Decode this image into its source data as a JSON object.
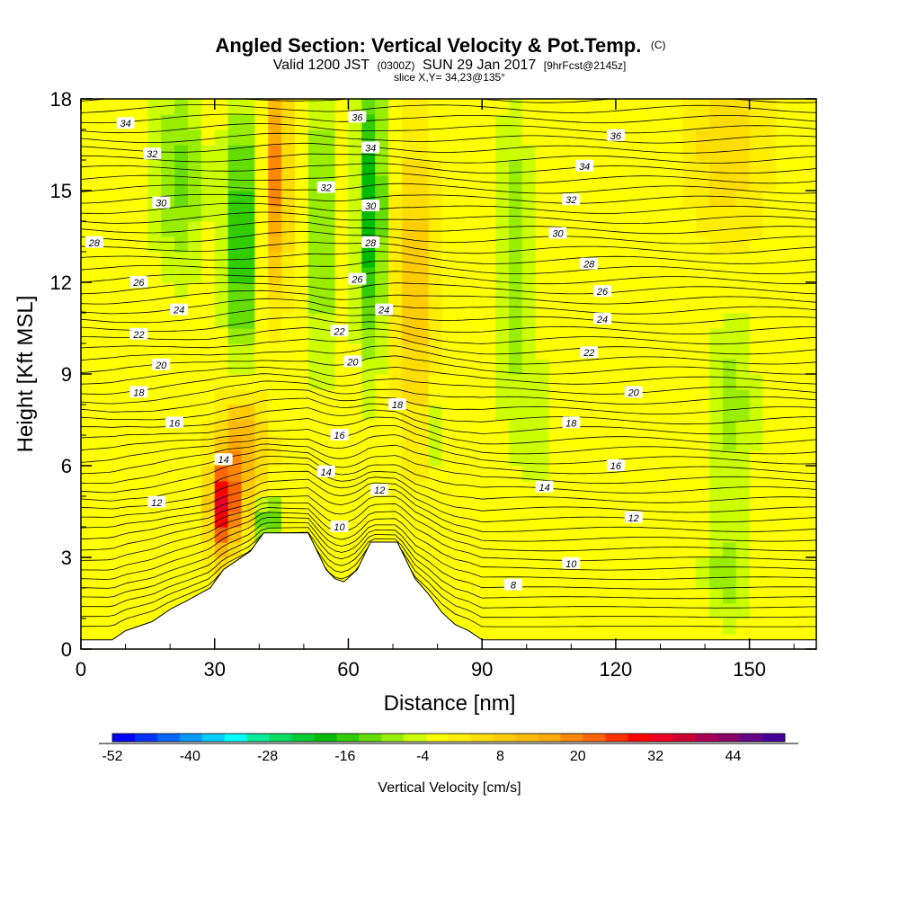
{
  "chart_data": {
    "type": "heatmap",
    "title": "Angled Section: Vertical Velocity & Pot.Temp.",
    "title_mark": "(C)",
    "subtitle": {
      "valid": "Valid 1200 JST",
      "utc": "(0300Z)",
      "date": "SUN 29 Jan 2017",
      "fcst": "[9hrFcst@2145z]"
    },
    "slice_label": "slice X,Y= 34,23@135°",
    "xlabel": "Distance [nm]",
    "ylabel": "Height [Kft MSL]",
    "xlim": [
      0,
      165
    ],
    "ylim": [
      0,
      18
    ],
    "x_ticks": [
      0,
      30,
      60,
      90,
      120,
      150
    ],
    "y_ticks": [
      0,
      3,
      6,
      9,
      12,
      15,
      18
    ],
    "colorbar": {
      "label": "Vertical Velocity [cm/s]",
      "range": [
        -52,
        52
      ],
      "step": 4,
      "tick_values": [
        -52,
        -40,
        -28,
        -16,
        -4,
        8,
        20,
        32,
        44
      ],
      "colors": [
        "#0000ff",
        "#0033ff",
        "#0066ff",
        "#0099ff",
        "#00ccff",
        "#00ffff",
        "#00ee99",
        "#00dd66",
        "#00cc33",
        "#00bb00",
        "#33cc00",
        "#66dd00",
        "#99ee00",
        "#ccff00",
        "#ffff00",
        "#ffee00",
        "#ffdd00",
        "#ffcc00",
        "#ffbb00",
        "#ffaa00",
        "#ff8800",
        "#ff6600",
        "#ff3300",
        "#ff0000",
        "#ee0022",
        "#cc0033",
        "#aa0055",
        "#880066",
        "#660088",
        "#440099"
      ]
    },
    "velocity_features": [
      {
        "x": 36,
        "y": 13.5,
        "w": -20,
        "sx": 3.5,
        "sy": 4.0
      },
      {
        "x": 22,
        "y": 15.5,
        "w": -12,
        "sx": 5.0,
        "sy": 3.0
      },
      {
        "x": 54,
        "y": 14.0,
        "w": -12,
        "sx": 3.0,
        "sy": 4.5
      },
      {
        "x": 44,
        "y": 15.5,
        "w": 26,
        "sx": 2.5,
        "sy": 3.5
      },
      {
        "x": 65,
        "y": 14.5,
        "w": -22,
        "sx": 3.0,
        "sy": 4.5
      },
      {
        "x": 75,
        "y": 12.0,
        "w": 14,
        "sx": 4.0,
        "sy": 5.0
      },
      {
        "x": 32,
        "y": 4.6,
        "w": 36,
        "sx": 3.0,
        "sy": 1.5
      },
      {
        "x": 36,
        "y": 6.5,
        "w": 20,
        "sx": 5.0,
        "sy": 2.0
      },
      {
        "x": 42,
        "y": 4.2,
        "w": -24,
        "sx": 2.0,
        "sy": 0.8
      },
      {
        "x": 97,
        "y": 12.5,
        "w": -10,
        "sx": 3.5,
        "sy": 5.0
      },
      {
        "x": 102,
        "y": 7.5,
        "w": -8,
        "sx": 2.0,
        "sy": 2.0
      },
      {
        "x": 146,
        "y": 8.0,
        "w": -8,
        "sx": 5.0,
        "sy": 3.0
      },
      {
        "x": 145,
        "y": 2.5,
        "w": -8,
        "sx": 5.0,
        "sy": 1.5
      },
      {
        "x": 145,
        "y": 16.5,
        "w": 10,
        "sx": 8.0,
        "sy": 3.0
      },
      {
        "x": 80,
        "y": 7.0,
        "w": -6,
        "sx": 2.0,
        "sy": 1.5
      }
    ],
    "terrain": [
      [
        7,
        0.3
      ],
      [
        10,
        0.6
      ],
      [
        16,
        0.9
      ],
      [
        20,
        1.3
      ],
      [
        24,
        1.6
      ],
      [
        29,
        2.0
      ],
      [
        32,
        2.6
      ],
      [
        35,
        2.9
      ],
      [
        38,
        3.2
      ],
      [
        41,
        3.8
      ],
      [
        51,
        3.8
      ],
      [
        53,
        3.2
      ],
      [
        55,
        2.6
      ],
      [
        57,
        2.3
      ],
      [
        59,
        2.2
      ],
      [
        62,
        2.6
      ],
      [
        65,
        3.5
      ],
      [
        71,
        3.5
      ],
      [
        73,
        2.9
      ],
      [
        75,
        2.3
      ],
      [
        78,
        1.8
      ],
      [
        81,
        1.2
      ],
      [
        84,
        0.8
      ],
      [
        87,
        0.6
      ],
      [
        90,
        0.3
      ]
    ],
    "theta_labels": [
      {
        "text": "34",
        "x": 10,
        "y": 17.2
      },
      {
        "text": "32",
        "x": 16,
        "y": 16.2
      },
      {
        "text": "30",
        "x": 18,
        "y": 14.6
      },
      {
        "text": "28",
        "x": 3,
        "y": 13.3
      },
      {
        "text": "26",
        "x": 13,
        "y": 12.0
      },
      {
        "text": "24",
        "x": 22,
        "y": 11.1
      },
      {
        "text": "22",
        "x": 13,
        "y": 10.3
      },
      {
        "text": "20",
        "x": 18,
        "y": 9.3
      },
      {
        "text": "18",
        "x": 13,
        "y": 8.4
      },
      {
        "text": "16",
        "x": 21,
        "y": 7.4
      },
      {
        "text": "14",
        "x": 32,
        "y": 6.2
      },
      {
        "text": "12",
        "x": 17,
        "y": 4.8
      },
      {
        "text": "36",
        "x": 62,
        "y": 17.4
      },
      {
        "text": "34",
        "x": 65,
        "y": 16.4
      },
      {
        "text": "32",
        "x": 55,
        "y": 15.1
      },
      {
        "text": "30",
        "x": 65,
        "y": 14.5
      },
      {
        "text": "28",
        "x": 65,
        "y": 13.3
      },
      {
        "text": "26",
        "x": 62,
        "y": 12.1
      },
      {
        "text": "24",
        "x": 68,
        "y": 11.1
      },
      {
        "text": "22",
        "x": 58,
        "y": 10.4
      },
      {
        "text": "20",
        "x": 61,
        "y": 9.4
      },
      {
        "text": "18",
        "x": 71,
        "y": 8.0
      },
      {
        "text": "16",
        "x": 58,
        "y": 7.0
      },
      {
        "text": "14",
        "x": 55,
        "y": 5.8
      },
      {
        "text": "12",
        "x": 67,
        "y": 5.2
      },
      {
        "text": "10",
        "x": 58,
        "y": 4.0
      },
      {
        "text": "8",
        "x": 97,
        "y": 2.1
      },
      {
        "text": "36",
        "x": 120,
        "y": 16.8
      },
      {
        "text": "34",
        "x": 113,
        "y": 15.8
      },
      {
        "text": "32",
        "x": 110,
        "y": 14.7
      },
      {
        "text": "30",
        "x": 107,
        "y": 13.6
      },
      {
        "text": "28",
        "x": 114,
        "y": 12.6
      },
      {
        "text": "26",
        "x": 117,
        "y": 11.7
      },
      {
        "text": "24",
        "x": 117,
        "y": 10.8
      },
      {
        "text": "22",
        "x": 114,
        "y": 9.7
      },
      {
        "text": "20",
        "x": 124,
        "y": 8.4
      },
      {
        "text": "18",
        "x": 110,
        "y": 7.4
      },
      {
        "text": "16",
        "x": 120,
        "y": 6.0
      },
      {
        "text": "14",
        "x": 104,
        "y": 5.3
      },
      {
        "text": "12",
        "x": 124,
        "y": 4.3
      },
      {
        "text": "10",
        "x": 110,
        "y": 2.8
      }
    ]
  }
}
